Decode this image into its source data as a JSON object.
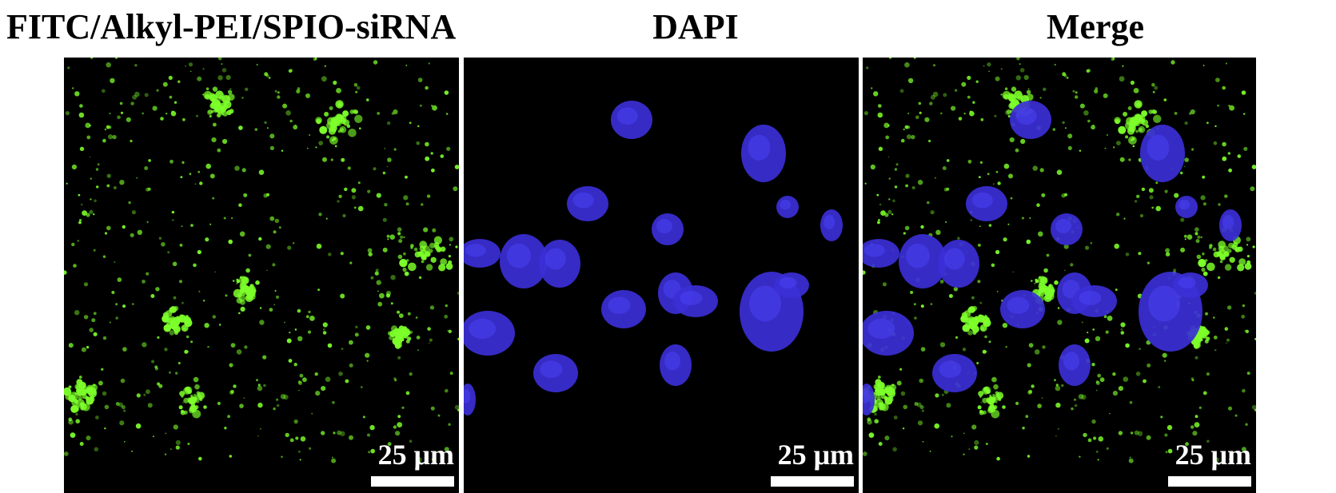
{
  "panels": [
    {
      "title": "FITC/Alkyl-PEI/SPIO-siRNA",
      "channel": "green",
      "scale_label": "25 μm"
    },
    {
      "title": "DAPI",
      "channel": "blue",
      "scale_label": "25 μm"
    },
    {
      "title": "Merge",
      "channel": "green+blue",
      "scale_label": "25 μm"
    }
  ],
  "colors": {
    "background": "#000000",
    "fitc_green": "#7dff2a",
    "dapi_blue": "#3b2fd6"
  }
}
